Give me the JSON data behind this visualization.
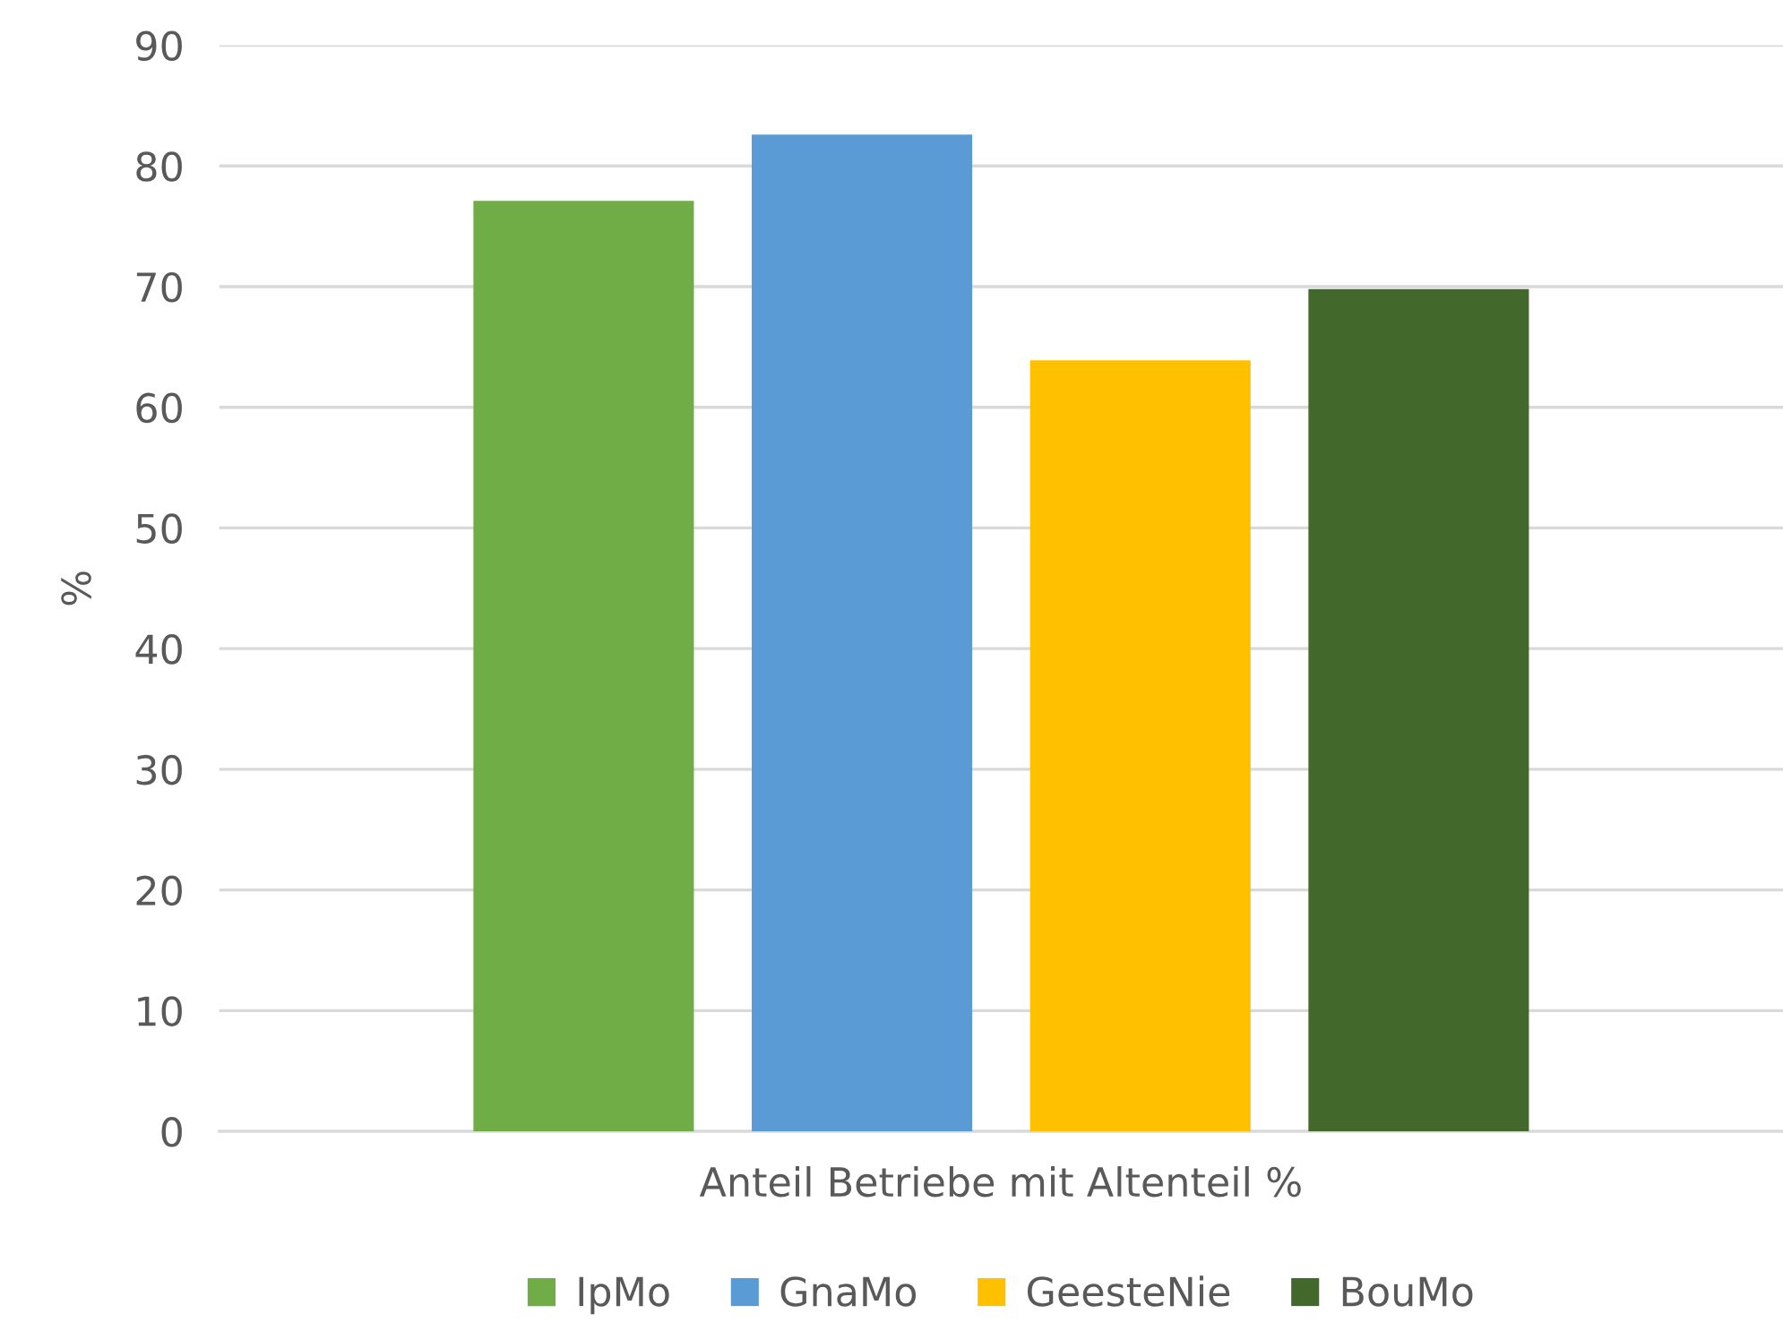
{
  "chart_data": {
    "type": "bar",
    "ylabel": "%",
    "categories": [
      "Anteil Betriebe mit Altenteil %"
    ],
    "series": [
      {
        "name": "IpMo",
        "color": "#70ad47",
        "values": [
          77.1
        ]
      },
      {
        "name": "GnaMo",
        "color": "#5b9bd5",
        "values": [
          82.6
        ]
      },
      {
        "name": "GeesteNie",
        "color": "#ffc000",
        "values": [
          63.9
        ]
      },
      {
        "name": "BouMo",
        "color": "#43682b",
        "values": [
          69.8
        ]
      }
    ],
    "ylim": [
      0,
      90
    ],
    "yticks": [
      0,
      10,
      20,
      30,
      40,
      50,
      60,
      70,
      80,
      90
    ],
    "grid": "y",
    "legend": "bottom"
  }
}
